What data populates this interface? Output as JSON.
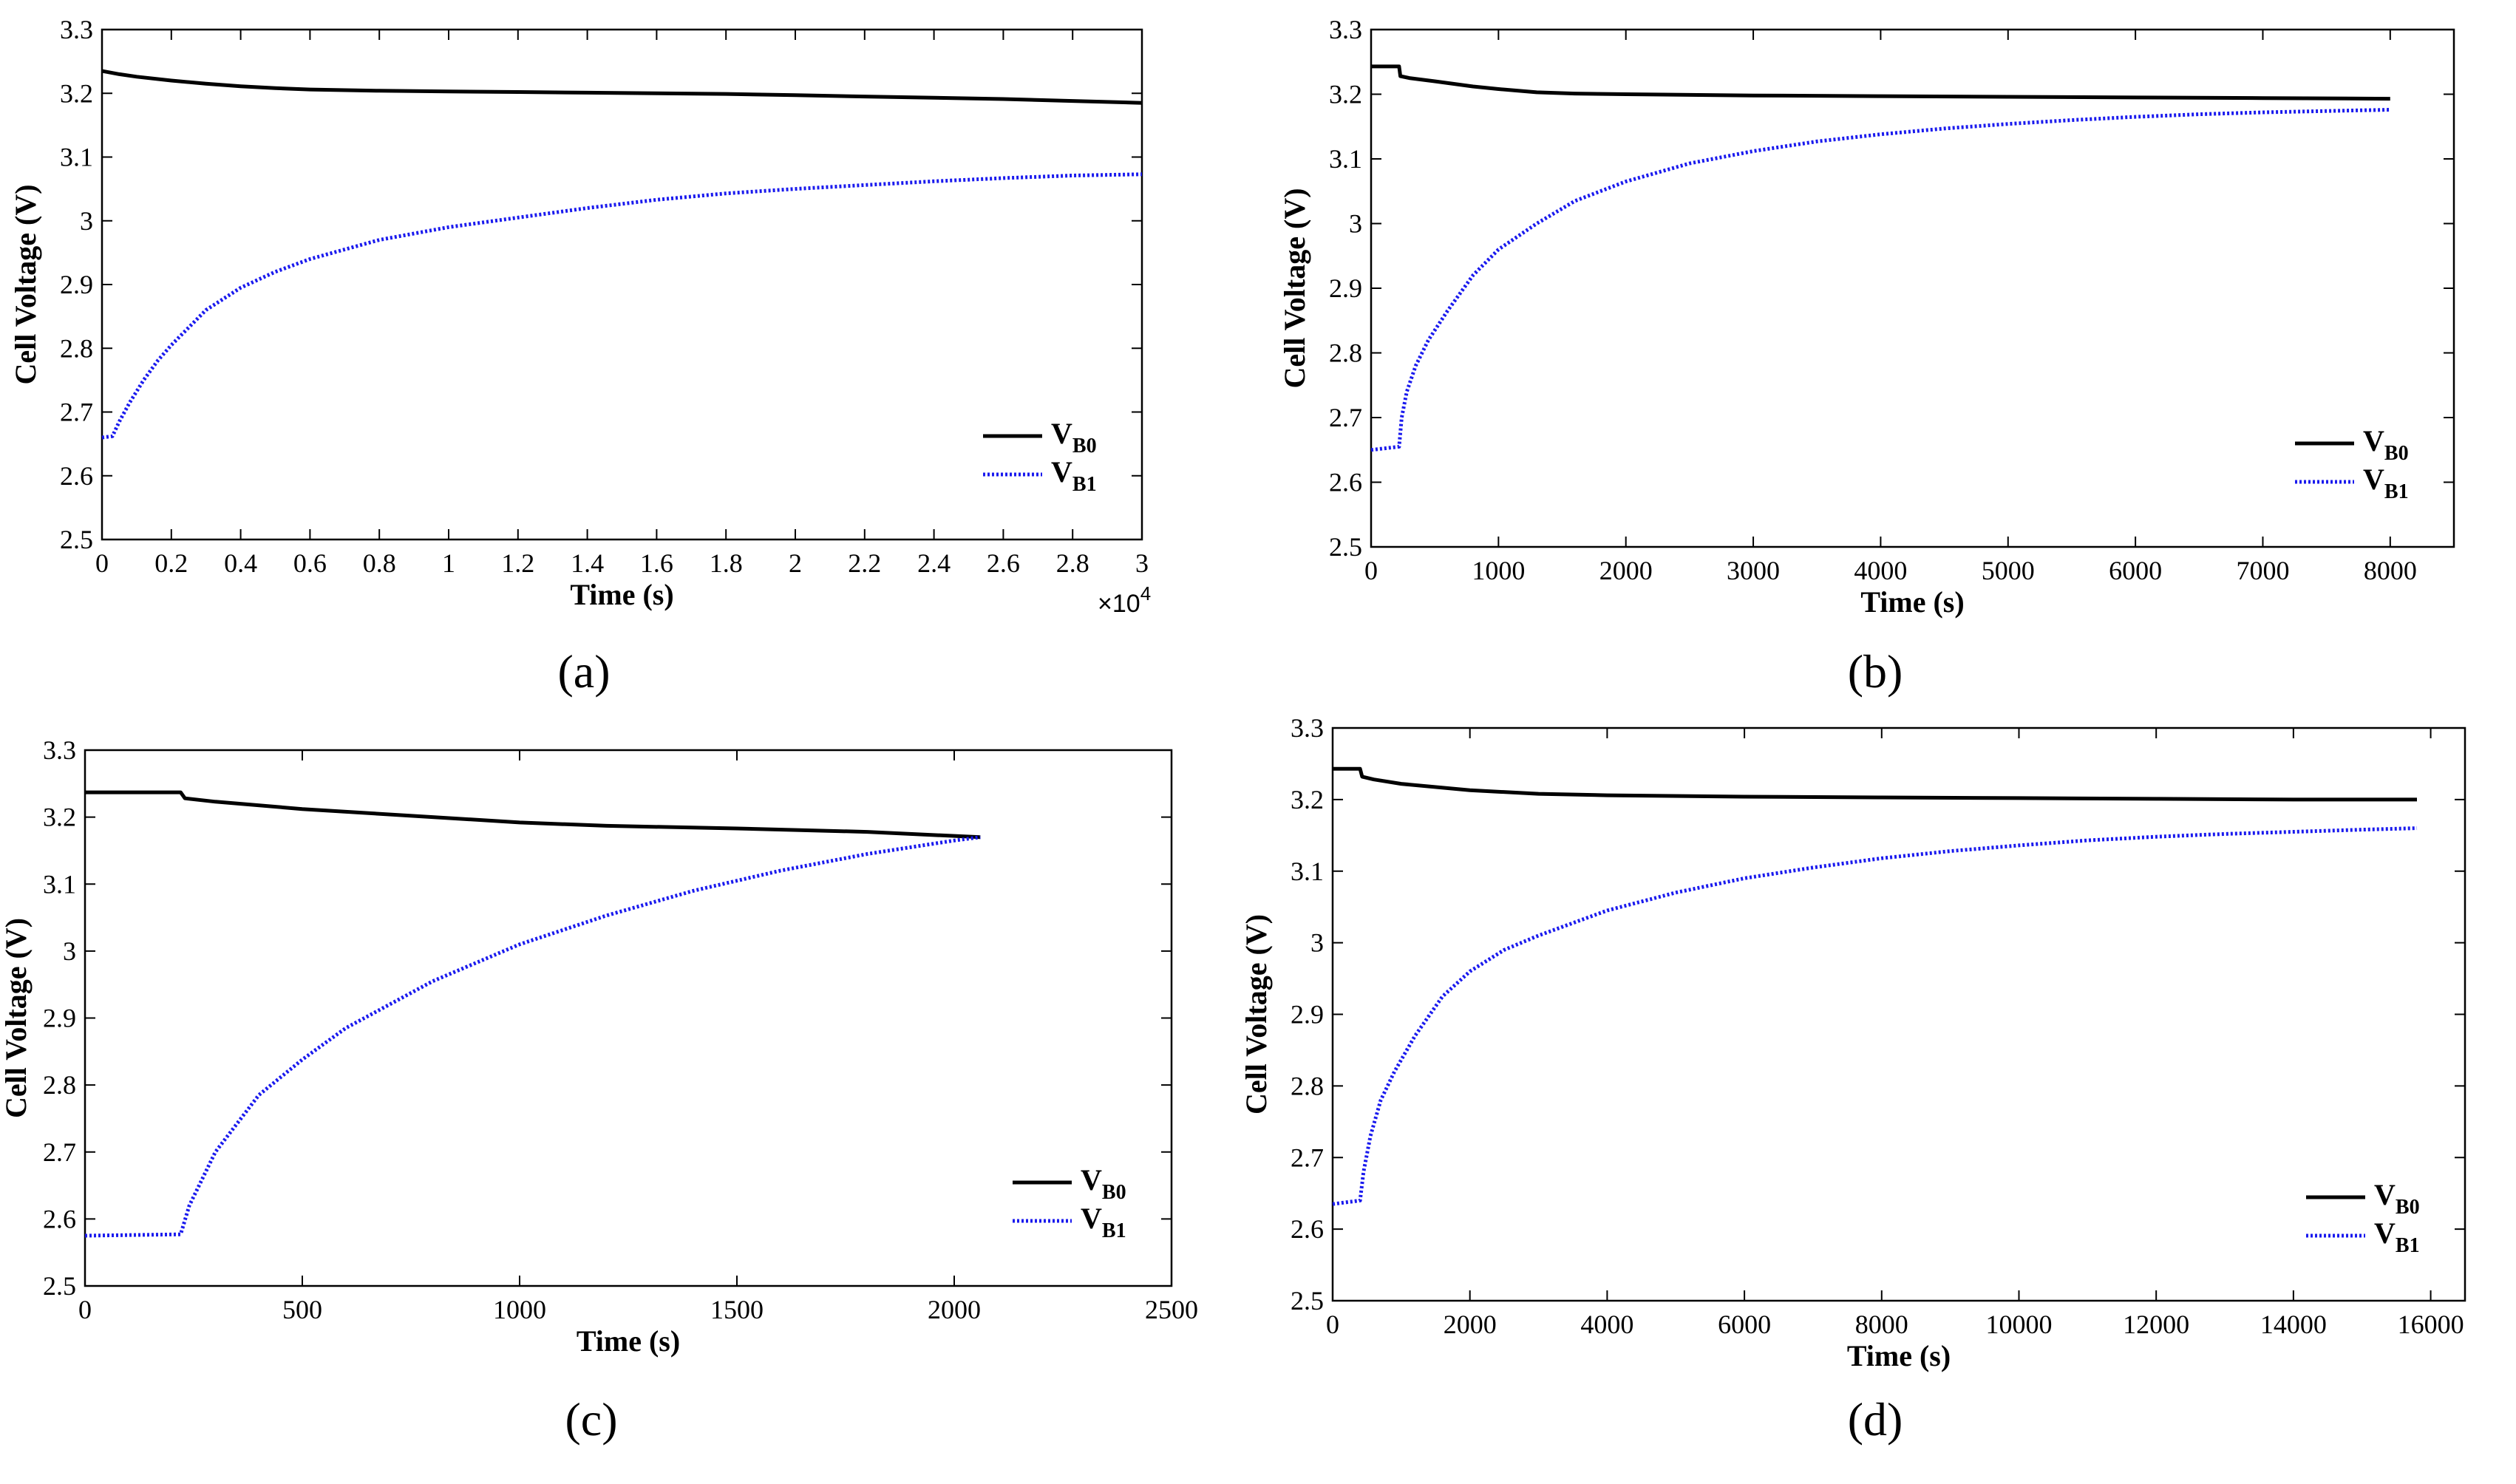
{
  "chart_data": [
    {
      "type": "line",
      "caption": "(a)",
      "xlabel": "Time (s)",
      "ylabel": "Cell Voltage (V)",
      "x_multiplier": "×10",
      "x_multiplier_exp": "4",
      "xlim": [
        0,
        30000
      ],
      "ylim": [
        2.5,
        3.3
      ],
      "xticks": [
        0,
        2000,
        4000,
        6000,
        8000,
        10000,
        12000,
        14000,
        16000,
        18000,
        20000,
        22000,
        24000,
        26000,
        28000,
        30000
      ],
      "xtick_labels": [
        "0",
        "0.2",
        "0.4",
        "0.6",
        "0.8",
        "1",
        "1.2",
        "1.4",
        "1.6",
        "1.8",
        "2",
        "2.2",
        "2.4",
        "2.6",
        "2.8",
        "3"
      ],
      "yticks": [
        2.5,
        2.6,
        2.7,
        2.8,
        2.9,
        3,
        3.1,
        3.2,
        3.3
      ],
      "ytick_labels": [
        "2.5",
        "2.6",
        "2.7",
        "2.8",
        "2.9",
        "3",
        "3.1",
        "3.2",
        "3.3"
      ],
      "legend": {
        "position": "right",
        "entries": [
          {
            "main": "V",
            "sub": "B0",
            "color": "#000000",
            "style": "solid"
          },
          {
            "main": "V",
            "sub": "B1",
            "color": "#1a1aee",
            "style": "dotted"
          }
        ]
      },
      "series": [
        {
          "name": "VB0",
          "color": "#000000",
          "style": "solid",
          "x": [
            0,
            200,
            500,
            1000,
            2000,
            3000,
            4000,
            5000,
            6000,
            8000,
            10000,
            12000,
            14000,
            16000,
            18000,
            20000,
            22000,
            24000,
            26000,
            28000,
            30000
          ],
          "y": [
            3.235,
            3.233,
            3.23,
            3.226,
            3.22,
            3.215,
            3.211,
            3.208,
            3.206,
            3.204,
            3.203,
            3.202,
            3.201,
            3.2,
            3.199,
            3.197,
            3.195,
            3.193,
            3.191,
            3.188,
            3.185
          ]
        },
        {
          "name": "VB1",
          "color": "#1a1aee",
          "style": "dotted",
          "x": [
            0,
            300,
            500,
            800,
            1200,
            1600,
            2000,
            3000,
            4000,
            5000,
            6000,
            8000,
            10000,
            12000,
            14000,
            16000,
            18000,
            20000,
            22000,
            24000,
            26000,
            28000,
            30000
          ],
          "y": [
            2.66,
            2.662,
            2.685,
            2.715,
            2.75,
            2.78,
            2.805,
            2.86,
            2.895,
            2.92,
            2.94,
            2.97,
            2.99,
            3.005,
            3.02,
            3.033,
            3.043,
            3.05,
            3.056,
            3.062,
            3.067,
            3.071,
            3.073
          ]
        }
      ]
    },
    {
      "type": "line",
      "caption": "(b)",
      "xlabel": "Time (s)",
      "ylabel": "Cell Voltage (V)",
      "x_multiplier": "",
      "x_multiplier_exp": "",
      "xlim": [
        0,
        8500
      ],
      "ylim": [
        2.5,
        3.3
      ],
      "xticks": [
        0,
        1000,
        2000,
        3000,
        4000,
        5000,
        6000,
        7000,
        8000
      ],
      "xtick_labels": [
        "0",
        "1000",
        "2000",
        "3000",
        "4000",
        "5000",
        "6000",
        "7000",
        "8000"
      ],
      "yticks": [
        2.5,
        2.6,
        2.7,
        2.8,
        2.9,
        3,
        3.1,
        3.2,
        3.3
      ],
      "ytick_labels": [
        "2.5",
        "2.6",
        "2.7",
        "2.8",
        "2.9",
        "3",
        "3.1",
        "3.2",
        "3.3"
      ],
      "legend": {
        "position": "right",
        "entries": [
          {
            "main": "V",
            "sub": "B0",
            "color": "#000000",
            "style": "solid"
          },
          {
            "main": "V",
            "sub": "B1",
            "color": "#1a1aee",
            "style": "dotted"
          }
        ]
      },
      "series": [
        {
          "name": "VB0",
          "color": "#000000",
          "style": "solid",
          "x": [
            0,
            220,
            230,
            300,
            500,
            800,
            1000,
            1300,
            1600,
            2000,
            3000,
            4000,
            5000,
            6000,
            7000,
            8000
          ],
          "y": [
            3.243,
            3.243,
            3.228,
            3.225,
            3.22,
            3.212,
            3.208,
            3.203,
            3.201,
            3.2,
            3.198,
            3.197,
            3.196,
            3.195,
            3.194,
            3.193
          ]
        },
        {
          "name": "VB1",
          "color": "#1a1aee",
          "style": "dotted",
          "x": [
            0,
            220,
            240,
            280,
            350,
            450,
            600,
            800,
            1000,
            1300,
            1600,
            2000,
            2500,
            3000,
            3500,
            4000,
            4500,
            5000,
            5500,
            6000,
            6500,
            7000,
            7500,
            8000
          ],
          "y": [
            2.65,
            2.655,
            2.7,
            2.74,
            2.78,
            2.82,
            2.865,
            2.92,
            2.96,
            3.0,
            3.035,
            3.065,
            3.093,
            3.112,
            3.127,
            3.138,
            3.147,
            3.154,
            3.16,
            3.165,
            3.169,
            3.172,
            3.174,
            3.176
          ]
        }
      ]
    },
    {
      "type": "line",
      "caption": "(c)",
      "xlabel": "Time (s)",
      "ylabel": "Cell Voltage (V)",
      "x_multiplier": "",
      "x_multiplier_exp": "",
      "xlim": [
        0,
        2500
      ],
      "ylim": [
        2.5,
        3.3
      ],
      "xticks": [
        0,
        500,
        1000,
        1500,
        2000,
        2500
      ],
      "xtick_labels": [
        "0",
        "500",
        "1000",
        "1500",
        "2000",
        "2500"
      ],
      "yticks": [
        2.5,
        2.6,
        2.7,
        2.8,
        2.9,
        3,
        3.1,
        3.2,
        3.3
      ],
      "ytick_labels": [
        "2.5",
        "2.6",
        "2.7",
        "2.8",
        "2.9",
        "3",
        "3.1",
        "3.2",
        "3.3"
      ],
      "legend": {
        "position": "right",
        "entries": [
          {
            "main": "V",
            "sub": "B0",
            "color": "#000000",
            "style": "solid"
          },
          {
            "main": "V",
            "sub": "B1",
            "color": "#1a1aee",
            "style": "dotted"
          }
        ]
      },
      "series": [
        {
          "name": "VB0",
          "color": "#000000",
          "style": "solid",
          "x": [
            0,
            220,
            230,
            300,
            500,
            800,
            1000,
            1200,
            1500,
            1800,
            2060
          ],
          "y": [
            3.237,
            3.237,
            3.228,
            3.223,
            3.212,
            3.2,
            3.192,
            3.187,
            3.183,
            3.178,
            3.17
          ]
        },
        {
          "name": "VB1",
          "color": "#1a1aee",
          "style": "dotted",
          "x": [
            0,
            220,
            240,
            300,
            400,
            500,
            600,
            800,
            1000,
            1200,
            1400,
            1600,
            1800,
            2000,
            2060
          ],
          "y": [
            2.575,
            2.577,
            2.62,
            2.7,
            2.785,
            2.838,
            2.885,
            2.955,
            3.01,
            3.053,
            3.09,
            3.12,
            3.145,
            3.165,
            3.17
          ]
        }
      ]
    },
    {
      "type": "line",
      "caption": "(d)",
      "xlabel": "Time (s)",
      "ylabel": "Cell Voltage (V)",
      "x_multiplier": "",
      "x_multiplier_exp": "",
      "xlim": [
        0,
        16500
      ],
      "ylim": [
        2.5,
        3.3
      ],
      "xticks": [
        0,
        2000,
        4000,
        6000,
        8000,
        10000,
        12000,
        14000,
        16000
      ],
      "xtick_labels": [
        "0",
        "2000",
        "4000",
        "6000",
        "8000",
        "10000",
        "12000",
        "14000",
        "16000"
      ],
      "yticks": [
        2.5,
        2.6,
        2.7,
        2.8,
        2.9,
        3,
        3.1,
        3.2,
        3.3
      ],
      "ytick_labels": [
        "2.5",
        "2.6",
        "2.7",
        "2.8",
        "2.9",
        "3",
        "3.1",
        "3.2",
        "3.3"
      ],
      "legend": {
        "position": "right",
        "entries": [
          {
            "main": "V",
            "sub": "B0",
            "color": "#000000",
            "style": "solid"
          },
          {
            "main": "V",
            "sub": "B1",
            "color": "#1a1aee",
            "style": "dotted"
          }
        ]
      },
      "series": [
        {
          "name": "VB0",
          "color": "#000000",
          "style": "solid",
          "x": [
            0,
            400,
            430,
            600,
            1000,
            2000,
            3000,
            4000,
            6000,
            8000,
            10000,
            12000,
            14000,
            15800
          ],
          "y": [
            3.243,
            3.243,
            3.232,
            3.228,
            3.222,
            3.213,
            3.208,
            3.206,
            3.204,
            3.203,
            3.202,
            3.201,
            3.2,
            3.2
          ]
        },
        {
          "name": "VB1",
          "color": "#1a1aee",
          "style": "dotted",
          "x": [
            0,
            400,
            450,
            550,
            700,
            900,
            1200,
            1600,
            2000,
            2500,
            3000,
            4000,
            5000,
            6000,
            7000,
            8000,
            9000,
            10000,
            11000,
            12000,
            13000,
            14000,
            15000,
            15800
          ],
          "y": [
            2.635,
            2.64,
            2.68,
            2.73,
            2.78,
            2.82,
            2.87,
            2.925,
            2.96,
            2.99,
            3.01,
            3.045,
            3.07,
            3.09,
            3.105,
            3.118,
            3.128,
            3.136,
            3.143,
            3.148,
            3.152,
            3.155,
            3.158,
            3.16
          ]
        }
      ]
    }
  ]
}
